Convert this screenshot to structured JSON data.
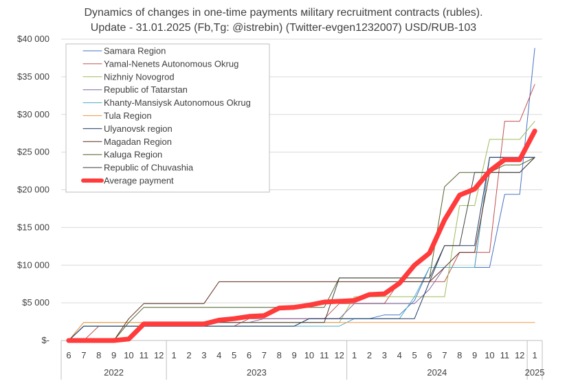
{
  "chart_data": {
    "type": "line",
    "title": "Dynamics of changes in one-time payments мilitary recruitment contracts (rubles).",
    "subtitle": "Update - 31.01.2025 (Fb,Tg: @istrebin) (Twitter-evgen1232007) USD/RUB-103",
    "xlabel": "",
    "ylabel": "",
    "ylim": [
      0,
      40000
    ],
    "y_ticks": [
      0,
      5000,
      10000,
      15000,
      20000,
      25000,
      30000,
      35000,
      40000
    ],
    "y_tick_labels": [
      "$-",
      "$5 000",
      "$10 000",
      "$15 000",
      "$20 000",
      "$25 000",
      "$30 000",
      "$35 000",
      "$40 000"
    ],
    "grid": "horizontal",
    "legend_position": "top-left",
    "x": [
      "6",
      "7",
      "8",
      "9",
      "10",
      "11",
      "12",
      "1",
      "2",
      "3",
      "4",
      "5",
      "6",
      "7",
      "8",
      "9",
      "10",
      "11",
      "12",
      "1",
      "2",
      "3",
      "4",
      "5",
      "6",
      "7",
      "8",
      "9",
      "10",
      "11",
      "12",
      "1"
    ],
    "year_groups": [
      {
        "label": "2022",
        "start": 0,
        "end": 6
      },
      {
        "label": "2023",
        "start": 7,
        "end": 18
      },
      {
        "label": "2024",
        "start": 19,
        "end": 30
      },
      {
        "label": "2025",
        "start": 31,
        "end": 31
      }
    ],
    "series": [
      {
        "name": "Samara Region",
        "color": "#4472C4",
        "width": 1,
        "values": [
          0,
          1900,
          1900,
          1900,
          1900,
          1900,
          1900,
          1900,
          1900,
          1900,
          1900,
          1900,
          1900,
          1900,
          1900,
          1900,
          2900,
          2900,
          2900,
          2900,
          2900,
          3400,
          3400,
          5300,
          9700,
          9700,
          9700,
          9700,
          9700,
          19400,
          19400,
          38800
        ]
      },
      {
        "name": "Yamal-Nenets Autonomous Okrug",
        "color": "#C0504D",
        "width": 1,
        "values": [
          0,
          0,
          1900,
          1900,
          1900,
          1900,
          1900,
          1900,
          1900,
          1900,
          1900,
          1900,
          2900,
          2900,
          2900,
          2900,
          2900,
          2900,
          4900,
          4900,
          4900,
          4900,
          7800,
          7800,
          7800,
          7800,
          11700,
          11700,
          11700,
          29100,
          29100,
          34000
        ]
      },
      {
        "name": "Nizhniy Novogrod",
        "color": "#9BBB59",
        "width": 1,
        "values": [
          0,
          2400,
          2400,
          2400,
          2400,
          2400,
          2400,
          2400,
          2400,
          2400,
          2400,
          2400,
          2400,
          2400,
          2400,
          2400,
          2400,
          2400,
          2400,
          5800,
          5800,
          5800,
          5800,
          5800,
          5800,
          5800,
          17900,
          17900,
          26700,
          26700,
          26700,
          29100
        ]
      },
      {
        "name": "Republic of Tatarstan",
        "color": "#8064A2",
        "width": 1,
        "values": [
          0,
          1900,
          1900,
          1900,
          1900,
          1900,
          1900,
          1900,
          1900,
          1900,
          2400,
          2400,
          2400,
          2900,
          2900,
          2900,
          2900,
          2900,
          2900,
          4900,
          4900,
          4900,
          4900,
          4900,
          6800,
          9700,
          9700,
          9700,
          24300,
          24300,
          24300,
          24300
        ]
      },
      {
        "name": "Khanty-Mansiysk Autonomous Okrug",
        "color": "#4BACC6",
        "width": 1,
        "values": [
          0,
          1900,
          1900,
          1900,
          1900,
          1900,
          1900,
          1900,
          1900,
          1900,
          1900,
          1900,
          1900,
          1900,
          1900,
          1900,
          1900,
          1900,
          1900,
          2900,
          2900,
          2900,
          2900,
          5800,
          9700,
          9700,
          9700,
          9700,
          24300,
          24300,
          24300,
          24300
        ]
      },
      {
        "name": "Tula Region",
        "color": "#F79646",
        "width": 1,
        "values": [
          0,
          2400,
          2400,
          2400,
          2400,
          2400,
          2400,
          2400,
          2400,
          2400,
          2400,
          2400,
          2400,
          2400,
          2400,
          2400,
          2400,
          2400,
          2400,
          2400,
          2400,
          2400,
          2400,
          2400,
          2400,
          2400,
          2400,
          2400,
          2400,
          2400,
          2400,
          2400
        ]
      },
      {
        "name": "Ulyanovsk region",
        "color": "#1F3864",
        "width": 1,
        "values": [
          0,
          1900,
          1900,
          1900,
          1900,
          1900,
          1900,
          1900,
          1900,
          1900,
          1900,
          1900,
          1900,
          1900,
          1900,
          1900,
          2900,
          2900,
          2900,
          2900,
          2900,
          2900,
          2900,
          2900,
          7800,
          12600,
          12600,
          12600,
          24300,
          24300,
          24300,
          24300
        ]
      },
      {
        "name": "Magadan Region",
        "color": "#5B2A1A",
        "width": 1,
        "values": [
          0,
          0,
          0,
          0,
          2900,
          4900,
          4900,
          4900,
          4900,
          4900,
          7800,
          7800,
          7800,
          7800,
          7800,
          7800,
          7800,
          7800,
          7800,
          7800,
          7800,
          7800,
          7800,
          7800,
          7800,
          9700,
          11700,
          11700,
          22300,
          22300,
          22300,
          24300
        ]
      },
      {
        "name": "Kaluga Region",
        "color": "#4F6228",
        "width": 1,
        "values": [
          0,
          0,
          0,
          0,
          2400,
          4400,
          4400,
          4400,
          4400,
          4400,
          4400,
          4400,
          4400,
          4400,
          4400,
          4400,
          4400,
          4400,
          8300,
          8300,
          8300,
          8300,
          8300,
          8300,
          8300,
          20400,
          22300,
          22300,
          22300,
          23300,
          23300,
          24300
        ]
      },
      {
        "name": "Republic of Chuvashia",
        "color": "#3F3F3F",
        "width": 1,
        "values": [
          0,
          0,
          0,
          0,
          0,
          2400,
          2400,
          2400,
          2400,
          2400,
          2400,
          2400,
          2400,
          2400,
          2400,
          2400,
          2400,
          2400,
          8300,
          8300,
          8300,
          8300,
          8300,
          8300,
          8300,
          12600,
          12600,
          22300,
          22300,
          22300,
          22300,
          24300
        ]
      },
      {
        "name": "Average payment",
        "color": "#FF3B3B",
        "width": 7,
        "values": [
          0,
          0,
          0,
          0,
          200,
          2200,
          2200,
          2200,
          2200,
          2200,
          2700,
          2900,
          3200,
          3300,
          4300,
          4400,
          4700,
          5100,
          5200,
          5300,
          6100,
          6200,
          7600,
          10000,
          11600,
          16000,
          19300,
          20100,
          22500,
          24000,
          24000,
          27800
        ]
      }
    ]
  }
}
